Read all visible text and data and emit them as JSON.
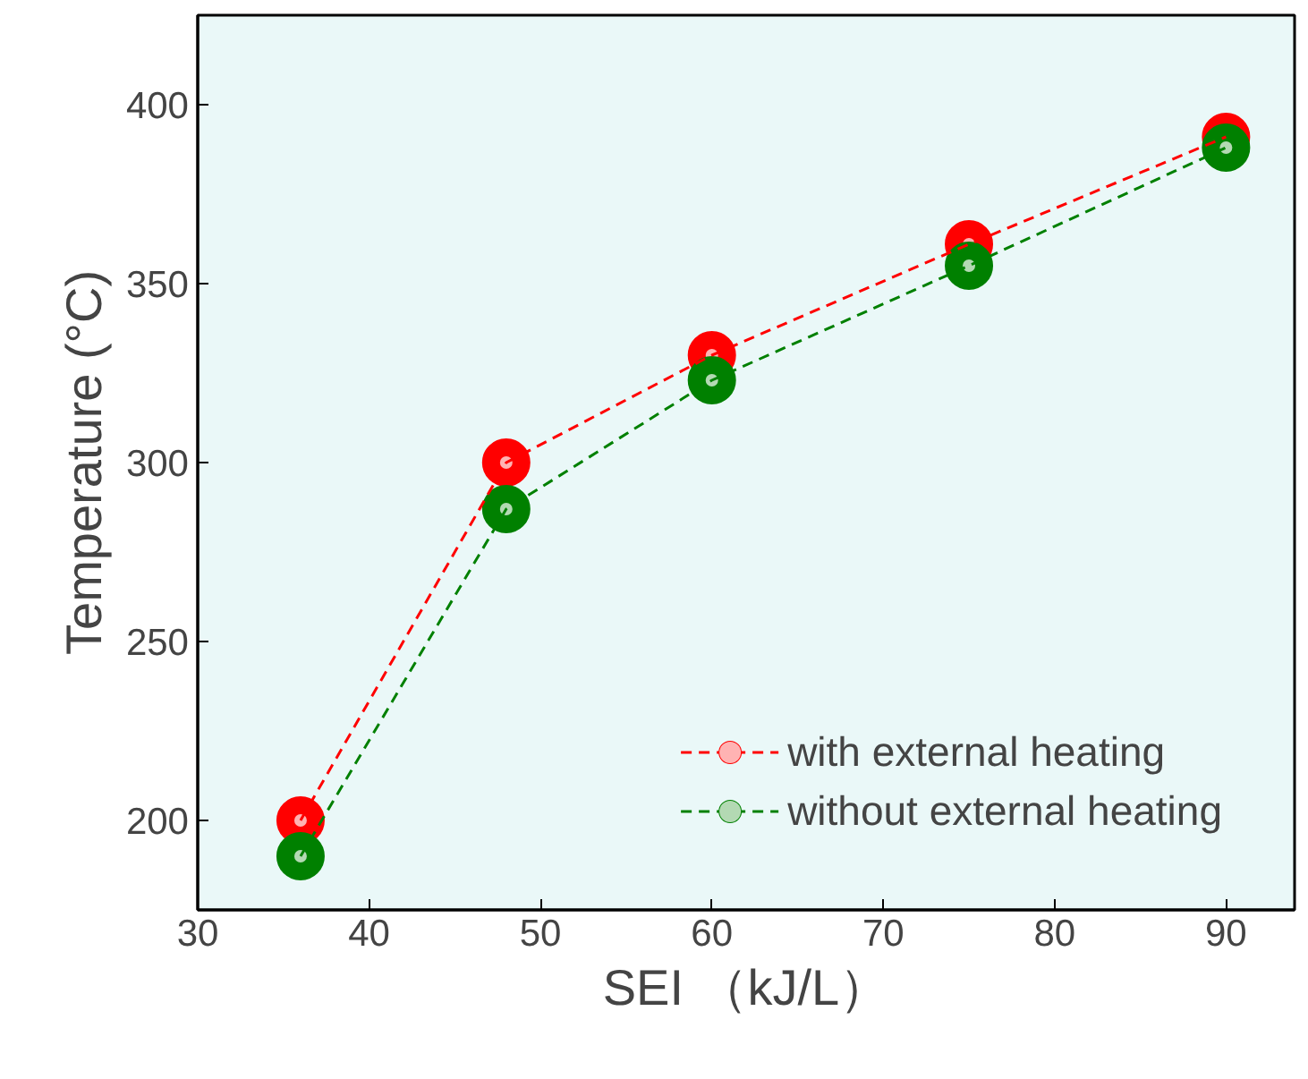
{
  "chart_data": {
    "type": "line",
    "xlabel": "SEI （kJ/L）",
    "ylabel": "Temperature (°C)",
    "x": [
      36,
      48,
      60,
      75,
      90
    ],
    "series": [
      {
        "name": "with external heating",
        "color": "#ff0000",
        "values": [
          200,
          300,
          330,
          361,
          391
        ]
      },
      {
        "name": "without external heating",
        "color": "#008000",
        "values": [
          190,
          287,
          323,
          355,
          388
        ]
      }
    ],
    "xlim": [
      30,
      94
    ],
    "ylim": [
      175,
      425
    ],
    "xticks": [
      30,
      40,
      50,
      60,
      70,
      80,
      90
    ],
    "yticks": [
      200,
      250,
      300,
      350,
      400
    ],
    "marker": "circle",
    "line_style": "dashed",
    "legend": "bottom right",
    "grid": false
  }
}
